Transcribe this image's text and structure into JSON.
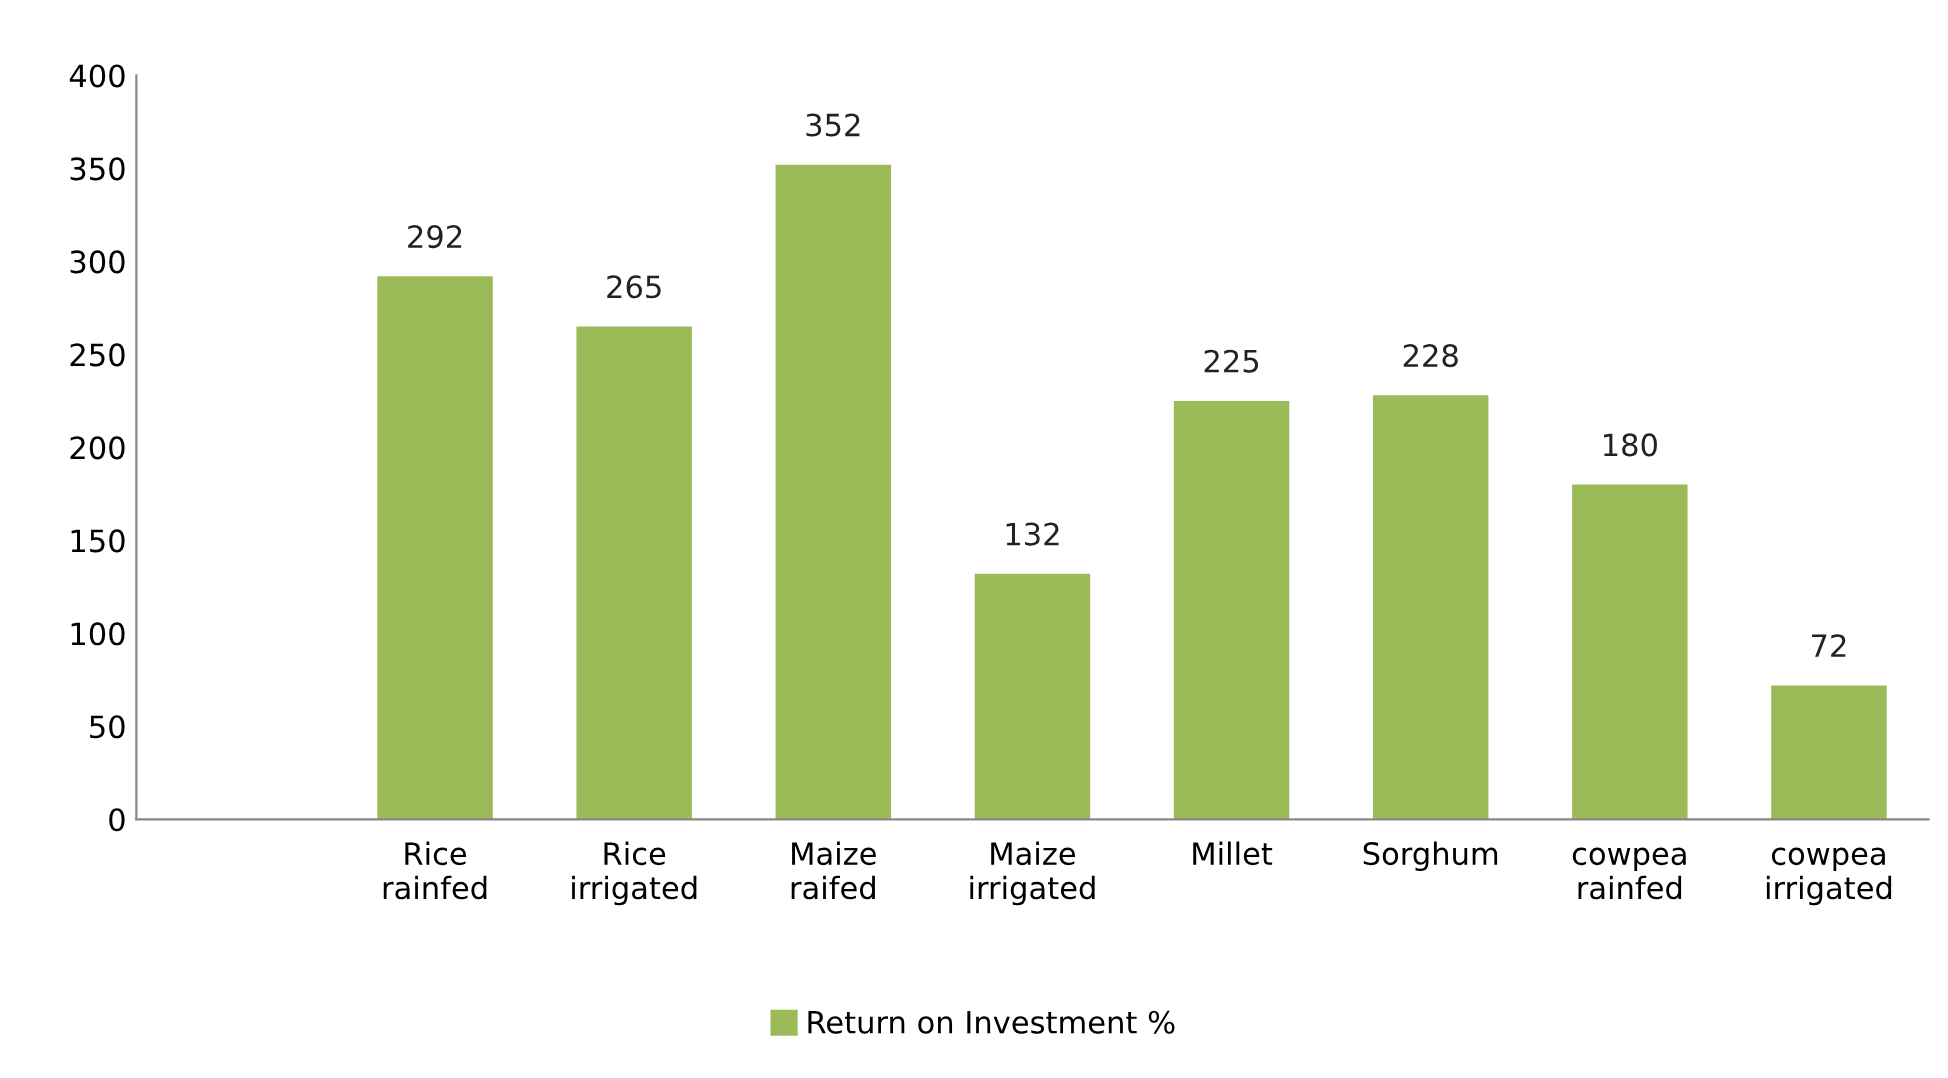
{
  "chart_data": {
    "type": "bar",
    "categories": [
      null,
      "Rice\nrainfed",
      "Rice\nirrigated",
      "Maize\nraifed",
      "Maize\nirrigated",
      "Millet",
      "Sorghum",
      "cowpea\nrainfed",
      "cowpea\nirrigated"
    ],
    "series": [
      {
        "name": "Return on Investment %",
        "color": "#9bbb59",
        "values": [
          null,
          292,
          265,
          352,
          132,
          225,
          228,
          180,
          72
        ]
      }
    ],
    "ylim": [
      0,
      400
    ],
    "yticks": [
      0,
      50,
      100,
      150,
      200,
      250,
      300,
      350,
      400
    ],
    "data_labels": true,
    "legend": "bottom",
    "grid": false
  }
}
